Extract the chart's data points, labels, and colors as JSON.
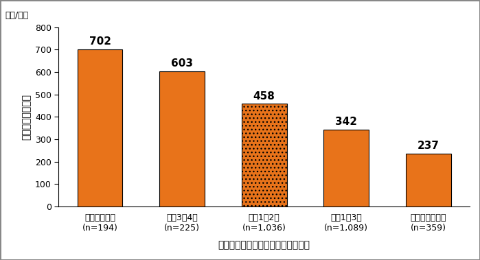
{
  "categories": [
    "ほとんど毎日\n(n=194)",
    "週に3〜4回\n(n=225)",
    "週に1〜2回\n(n=1,036)",
    "月に1〜3回\n(n=1,089)",
    "全くしなかった\n(n=359)"
  ],
  "values": [
    702,
    603,
    458,
    342,
    237
  ],
  "bar_color": "#E8731A",
  "bar_edgecolor": "#000000",
  "bar_linewidth": 0.8,
  "ylabel": "幼児の総運動時間",
  "xlabel": "親子で一緒に体を動かして遊ぶ頻度",
  "unit_label": "（分/週）",
  "ylim": [
    0,
    800
  ],
  "yticks": [
    0,
    100,
    200,
    300,
    400,
    500,
    600,
    700,
    800
  ],
  "value_fontsize": 11,
  "axis_label_fontsize": 10,
  "tick_label_fontsize": 9,
  "unit_fontsize": 9,
  "background_color": "#ffffff",
  "bar_width": 0.55,
  "third_bar_hatch": "..."
}
